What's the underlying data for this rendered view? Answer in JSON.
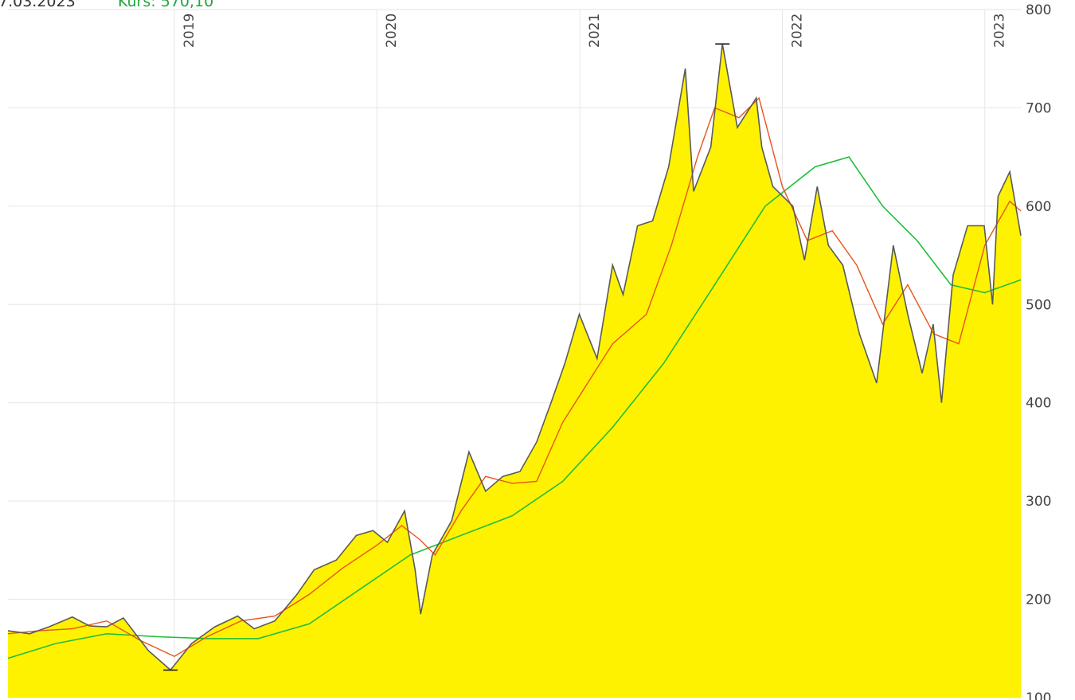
{
  "header": {
    "date_text": "7.03.2023",
    "price_text": "Kurs: 570,10"
  },
  "colors": {
    "area_fill": "#FFF200",
    "price_line": "#5a5a5a",
    "ma_short": "#E8541A",
    "ma_long": "#1FBF3A",
    "grid": "#e6e6e6"
  },
  "chart_data": {
    "type": "area",
    "x_tick_labels": [
      "2019",
      "2020",
      "2021",
      "2022",
      "2023"
    ],
    "y_tick_labels": [
      "100",
      "200",
      "300",
      "400",
      "500",
      "600",
      "700",
      "800"
    ],
    "ylim": [
      100,
      800
    ],
    "xlim": [
      "2018-03-07",
      "2023-03-07"
    ],
    "grid": true,
    "series": [
      {
        "role": "price",
        "x": [
          "2018-03-07",
          "2018-04-15",
          "2018-05-20",
          "2018-07-01",
          "2018-08-01",
          "2018-09-01",
          "2018-10-01",
          "2018-11-15",
          "2018-12-25",
          "2019-02-01",
          "2019-03-15",
          "2019-04-25",
          "2019-05-25",
          "2019-07-01",
          "2019-08-10",
          "2019-09-10",
          "2019-10-20",
          "2019-11-25",
          "2019-12-25",
          "2020-01-20",
          "2020-02-20",
          "2020-03-10",
          "2020-03-20",
          "2020-04-10",
          "2020-05-15",
          "2020-06-15",
          "2020-07-15",
          "2020-08-15",
          "2020-09-15",
          "2020-10-15",
          "2020-11-10",
          "2020-12-05",
          "2020-12-31",
          "2021-02-01",
          "2021-03-01",
          "2021-03-20",
          "2021-04-15",
          "2021-05-12",
          "2021-06-10",
          "2021-07-10",
          "2021-07-25",
          "2021-08-25",
          "2021-09-15",
          "2021-10-12",
          "2021-11-15",
          "2021-11-25",
          "2021-12-15",
          "2022-01-20",
          "2022-02-10",
          "2022-03-05",
          "2022-03-25",
          "2022-04-20",
          "2022-05-20",
          "2022-06-20",
          "2022-07-20",
          "2022-08-15",
          "2022-09-10",
          "2022-09-30",
          "2022-10-15",
          "2022-11-05",
          "2022-12-01",
          "2022-12-31",
          "2023-01-15",
          "2023-01-25",
          "2023-02-15",
          "2023-03-07"
        ],
        "y": [
          168,
          165,
          172,
          182,
          173,
          172,
          181,
          148,
          128,
          155,
          172,
          183,
          170,
          178,
          205,
          230,
          240,
          265,
          270,
          258,
          290,
          230,
          185,
          245,
          280,
          350,
          310,
          325,
          330,
          360,
          400,
          440,
          490,
          445,
          540,
          510,
          580,
          585,
          640,
          740,
          615,
          660,
          765,
          680,
          710,
          660,
          620,
          600,
          545,
          620,
          560,
          540,
          470,
          420,
          560,
          490,
          430,
          480,
          400,
          530,
          580,
          580,
          500,
          610,
          635,
          570
        ]
      },
      {
        "role": "moving-average-short",
        "x": [
          "2018-03-07",
          "2018-05-01",
          "2018-07-01",
          "2018-09-01",
          "2018-11-01",
          "2019-01-01",
          "2019-03-01",
          "2019-05-01",
          "2019-07-01",
          "2019-09-01",
          "2019-11-01",
          "2020-01-01",
          "2020-02-15",
          "2020-03-20",
          "2020-04-15",
          "2020-06-01",
          "2020-07-15",
          "2020-09-01",
          "2020-10-15",
          "2020-12-01",
          "2021-01-15",
          "2021-03-01",
          "2021-05-01",
          "2021-06-15",
          "2021-08-01",
          "2021-09-01",
          "2021-10-15",
          "2021-11-20",
          "2022-01-01",
          "2022-02-15",
          "2022-04-01",
          "2022-05-15",
          "2022-07-01",
          "2022-08-15",
          "2022-10-01",
          "2022-11-15",
          "2023-01-01",
          "2023-02-15",
          "2023-03-07"
        ],
        "y": [
          165,
          168,
          170,
          178,
          158,
          142,
          162,
          178,
          183,
          205,
          232,
          255,
          275,
          260,
          245,
          290,
          325,
          318,
          320,
          380,
          420,
          460,
          490,
          560,
          650,
          700,
          690,
          710,
          620,
          565,
          575,
          540,
          480,
          520,
          470,
          460,
          560,
          605,
          595
        ]
      },
      {
        "role": "moving-average-long",
        "x": [
          "2018-03-07",
          "2018-06-01",
          "2018-09-01",
          "2018-12-01",
          "2019-03-01",
          "2019-06-01",
          "2019-09-01",
          "2019-12-01",
          "2020-03-01",
          "2020-06-01",
          "2020-09-01",
          "2020-12-01",
          "2021-03-01",
          "2021-06-01",
          "2021-09-01",
          "2021-12-01",
          "2022-03-01",
          "2022-05-01",
          "2022-07-01",
          "2022-09-01",
          "2022-11-01",
          "2023-01-01",
          "2023-03-07"
        ],
        "y": [
          140,
          155,
          165,
          162,
          160,
          160,
          175,
          210,
          245,
          265,
          285,
          320,
          375,
          440,
          520,
          600,
          640,
          650,
          600,
          565,
          520,
          512,
          525
        ]
      }
    ]
  }
}
